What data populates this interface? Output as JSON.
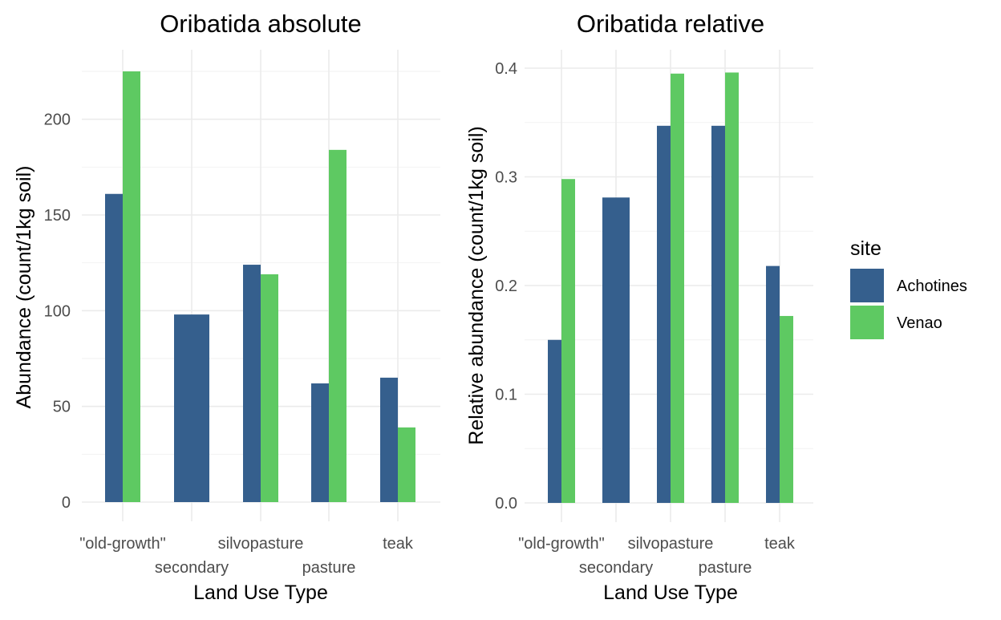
{
  "colors": {
    "Achotines": "#355f8d",
    "Venao": "#5ec962"
  },
  "legend": {
    "title": "site",
    "placement": "right",
    "items": [
      {
        "label": "Achotines",
        "color": "#355f8d"
      },
      {
        "label": "Venao",
        "color": "#5ec962"
      }
    ]
  },
  "chart_data": [
    {
      "type": "bar",
      "title": "Oribatida absolute",
      "xlabel": "Land Use Type",
      "ylabel": "Abundance (count/1kg soil)",
      "categories": [
        "\"old-growth\"",
        "secondary",
        "silvopasture",
        "pasture",
        "teak"
      ],
      "ylim": [
        0,
        230
      ],
      "yticks": [
        0,
        50,
        100,
        150,
        200
      ],
      "ytick_labels": [
        "0",
        "50",
        "100",
        "150",
        "200"
      ],
      "grid": true,
      "series": [
        {
          "name": "Achotines",
          "values": [
            161,
            98,
            124,
            62,
            65
          ]
        },
        {
          "name": "Venao",
          "values": [
            225,
            null,
            119,
            184,
            39
          ]
        }
      ]
    },
    {
      "type": "bar",
      "title": "Oribatida relative",
      "xlabel": "Land Use Type",
      "ylabel": "Relative abundance (count/1kg soil)",
      "categories": [
        "\"old-growth\"",
        "secondary",
        "silvopasture",
        "pasture",
        "teak"
      ],
      "ylim": [
        0,
        0.41
      ],
      "yticks": [
        0,
        0.1,
        0.2,
        0.3,
        0.4
      ],
      "ytick_labels": [
        "0.0",
        "0.1",
        "0.2",
        "0.3",
        "0.4"
      ],
      "grid": true,
      "series": [
        {
          "name": "Achotines",
          "values": [
            0.15,
            0.281,
            0.347,
            0.347,
            0.218
          ]
        },
        {
          "name": "Venao",
          "values": [
            0.298,
            null,
            0.395,
            0.396,
            0.172
          ]
        }
      ]
    }
  ]
}
